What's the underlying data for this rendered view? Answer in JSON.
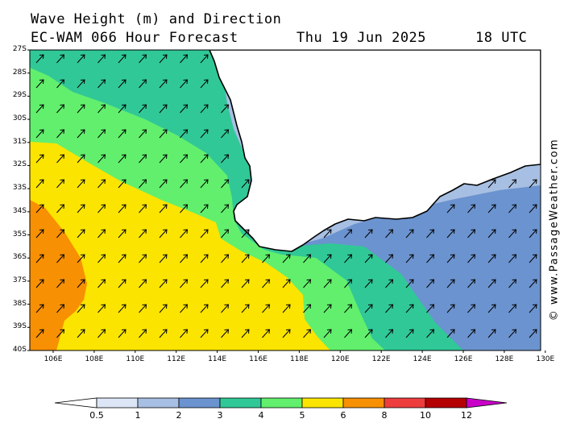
{
  "header": {
    "title": "Wave Height (m) and Direction",
    "model": "EC-WAM 066 Hour Forecast",
    "date": "Thu 19 Jun 2025",
    "time": "18 UTC"
  },
  "watermark": "© www.PassageWeather.com",
  "axes": {
    "latitudes": [
      "27S",
      "28S",
      "29S",
      "30S",
      "31S",
      "32S",
      "33S",
      "34S",
      "35S",
      "36S",
      "37S",
      "38S",
      "39S",
      "40S"
    ],
    "longitudes": [
      "106E",
      "108E",
      "110E",
      "112E",
      "114E",
      "116E",
      "118E",
      "120E",
      "122E",
      "124E",
      "126E",
      "128E",
      "130E"
    ]
  },
  "legend": {
    "labels": [
      "0.5",
      "1",
      "2",
      "3",
      "4",
      "5",
      "6",
      "8",
      "10",
      "12"
    ],
    "colors": [
      "#ffffff",
      "#dce6f6",
      "#a7bfe2",
      "#6b93cf",
      "#31c897",
      "#62ef6d",
      "#fbe400",
      "#f79003",
      "#ee3d3d",
      "#b40003",
      "#c900c8"
    ]
  },
  "colors": {
    "wave_1_2m": "#a7bfe2",
    "wave_2_3m": "#6b93cf",
    "wave_3_4m": "#31c897",
    "wave_4_5m": "#62ef6d",
    "wave_5_6m": "#fbe400",
    "wave_6_8m": "#f79003",
    "land": "#ffffff",
    "coastline": "#000000"
  },
  "wave_direction": "from southwest (arrows pointing northeast)"
}
